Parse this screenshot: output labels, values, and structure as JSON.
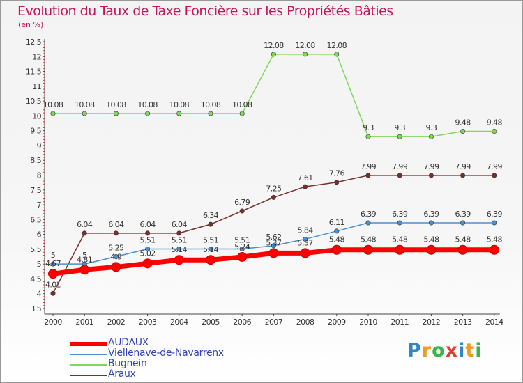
{
  "chart_data": {
    "type": "line",
    "title": "Evolution du Taux de Taxe Foncière sur les Propriétés Bâties",
    "unit_label": "(en %)",
    "xlabel": "",
    "ylabel": "(en %)",
    "ylim": [
      3.5,
      12.5
    ],
    "y_ticks": [
      "3.5",
      "4",
      "4.5",
      "5",
      "5.5",
      "6",
      "6.5",
      "7",
      "7.5",
      "8",
      "8.5",
      "9",
      "9.5",
      "10",
      "10.5",
      "11",
      "11.5",
      "12",
      "12.5"
    ],
    "categories": [
      "2000",
      "2001",
      "2002",
      "2003",
      "2004",
      "2005",
      "2006",
      "2007",
      "2008",
      "2009",
      "2010",
      "2011",
      "2012",
      "2013",
      "2014"
    ],
    "series": [
      {
        "name": "AUDAUX",
        "color": "#ff0000",
        "values": [
          4.67,
          4.81,
          4.9,
          5.02,
          5.14,
          5.14,
          5.24,
          5.37,
          5.37,
          5.48,
          5.48,
          5.48,
          5.48,
          5.48,
          5.48
        ],
        "labels": [
          "4.67",
          "4.81",
          "4.9",
          "5.02",
          "5.14",
          "5.14",
          "5.24",
          "5.37",
          "5.37",
          "5.48",
          "5.48",
          "5.48",
          "5.48",
          "5.48",
          "5.48"
        ]
      },
      {
        "name": "Viellenave-de-Navarrenx",
        "color": "#4a8fd0",
        "values": [
          5,
          5,
          5.25,
          5.51,
          5.51,
          5.51,
          5.51,
          5.62,
          5.84,
          6.11,
          6.39,
          6.39,
          6.39,
          6.39,
          6.39
        ],
        "labels": [
          "5",
          "5",
          "5.25",
          "5.51",
          "5.51",
          "5.51",
          "5.51",
          "5.62",
          "5.84",
          "6.11",
          "6.39",
          "6.39",
          "6.39",
          "6.39",
          "6.39"
        ]
      },
      {
        "name": "Bugnein",
        "color": "#7ed957",
        "values": [
          10.08,
          10.08,
          10.08,
          10.08,
          10.08,
          10.08,
          10.08,
          12.08,
          12.08,
          12.08,
          9.3,
          9.3,
          9.3,
          9.48,
          9.48
        ],
        "labels": [
          "10.08",
          "10.08",
          "10.08",
          "10.08",
          "10.08",
          "10.08",
          "10.08",
          "12.08",
          "12.08",
          "12.08",
          "9.3",
          "9.3",
          "9.3",
          "9.48",
          "9.48"
        ]
      },
      {
        "name": "Araux",
        "color": "#7a2e2e",
        "values": [
          4.01,
          6.04,
          6.04,
          6.04,
          6.04,
          6.34,
          6.79,
          7.25,
          7.61,
          7.76,
          7.99,
          7.99,
          7.99,
          7.99,
          7.99
        ],
        "labels": [
          "4.01",
          "6.04",
          "6.04",
          "6.04",
          "6.04",
          "6.34",
          "6.79",
          "7.25",
          "7.61",
          "7.76",
          "7.99",
          "7.99",
          "7.99",
          "7.99",
          "7.99"
        ]
      }
    ],
    "legend_position": "bottom-left",
    "grid": false
  },
  "logo": {
    "text": "Proxiti"
  }
}
